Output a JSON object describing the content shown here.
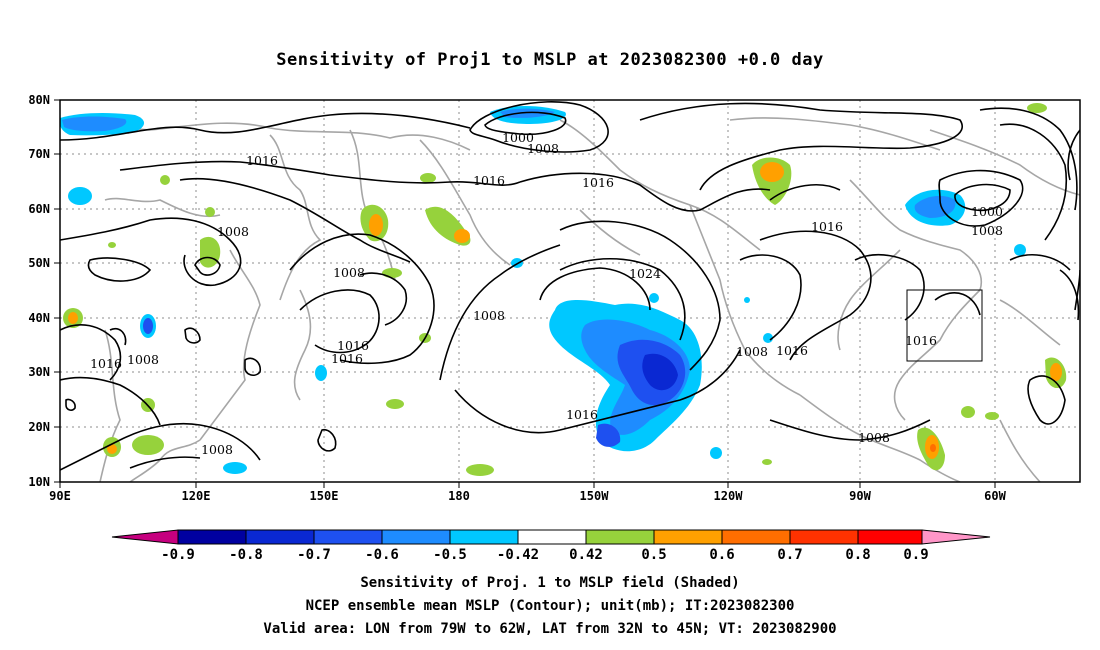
{
  "title": "Sensitivity of Proj1 to MSLP at 2023082300 +0.0 day",
  "map": {
    "lat_labels": [
      "80N",
      "70N",
      "60N",
      "50N",
      "40N",
      "30N",
      "20N",
      "10N"
    ],
    "lon_labels": [
      "90E",
      "120E",
      "150E",
      "180",
      "150W",
      "120W",
      "90W",
      "60W"
    ],
    "contour_labels": [
      "1016",
      "1000",
      "1008",
      "1016",
      "1016",
      "1008",
      "1008",
      "1024",
      "1008",
      "1016",
      "1016",
      "1016",
      "1008",
      "1016",
      "1000",
      "1008",
      "1016",
      "1008",
      "1016",
      "1016",
      "1008",
      "1008",
      "1016",
      "1008"
    ],
    "valid_box_label": "Valid area",
    "colors": {
      "coast": "#a6a6a6",
      "contour": "#000000",
      "grid": "#8c8c8c"
    }
  },
  "colorbar": {
    "labels": [
      "-0.9",
      "-0.8",
      "-0.7",
      "-0.6",
      "-0.5",
      "-0.42",
      "0.42",
      "0.5",
      "0.6",
      "0.7",
      "0.8",
      "0.9"
    ],
    "colors": [
      "#c6007f",
      "#0000a0",
      "#0a28d2",
      "#1e50f0",
      "#1e8cff",
      "#00c8ff",
      "#ffffff",
      "#96d23c",
      "#ffa000",
      "#ff6e00",
      "#ff3200",
      "#ff0000",
      "#ff96c8"
    ]
  },
  "captions": {
    "line1": "Sensitivity of Proj. 1 to MSLP field (Shaded)",
    "line2": "NCEP ensemble mean MSLP (Contour); unit(mb); IT:2023082300",
    "line3": "Valid area: LON from 79W to 62W, LAT from 32N to 45N; VT: 2023082900"
  }
}
